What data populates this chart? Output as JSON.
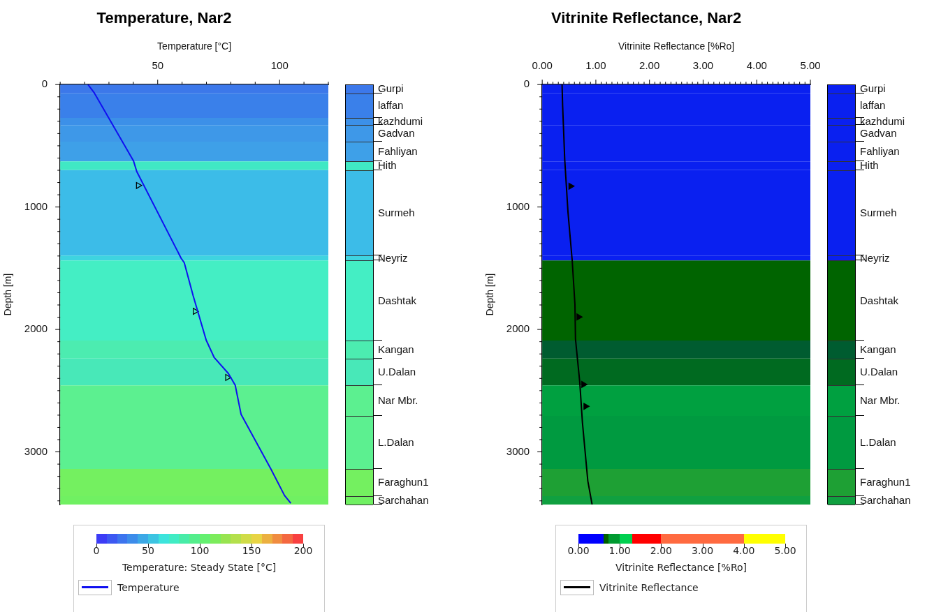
{
  "chart_data": [
    {
      "type": "line",
      "title": "Temperature, Nar2",
      "xlabel": "Temperature [°C]",
      "ylabel": "Depth [m]",
      "clabel": "Temperature: Steady State [°C]",
      "clim": [
        0,
        200
      ],
      "cticks": [
        0,
        50,
        100,
        150,
        200
      ],
      "xlim": [
        10,
        120
      ],
      "xticks": [
        {
          "value": 10,
          "label": null
        },
        {
          "value": 20,
          "label": null
        },
        {
          "value": 30,
          "label": null
        },
        {
          "value": 40,
          "label": null
        },
        50,
        {
          "value": 60,
          "label": null
        },
        {
          "value": 70,
          "label": null
        },
        {
          "value": 80,
          "label": null
        },
        {
          "value": 90,
          "label": null
        },
        100,
        {
          "value": 110,
          "label": null
        },
        {
          "value": 120,
          "label": null
        }
      ],
      "ylim": [
        3430,
        0
      ],
      "yticks": [
        0,
        {
          "value": 100,
          "label": null
        },
        {
          "value": 200,
          "label": null
        },
        {
          "value": 300,
          "label": null
        },
        {
          "value": 400,
          "label": null
        },
        {
          "value": 500,
          "label": null
        },
        {
          "value": 600,
          "label": null
        },
        {
          "value": 700,
          "label": null
        },
        {
          "value": 800,
          "label": null
        },
        {
          "value": 900,
          "label": null
        },
        1000,
        {
          "value": 1100,
          "label": null
        },
        {
          "value": 1200,
          "label": null
        },
        {
          "value": 1300,
          "label": null
        },
        {
          "value": 1400,
          "label": null
        },
        {
          "value": 1500,
          "label": null
        },
        {
          "value": 1600,
          "label": null
        },
        {
          "value": 1700,
          "label": null
        },
        {
          "value": 1800,
          "label": null
        },
        {
          "value": 1900,
          "label": null
        },
        2000,
        {
          "value": 2100,
          "label": null
        },
        {
          "value": 2200,
          "label": null
        },
        {
          "value": 2300,
          "label": null
        },
        {
          "value": 2400,
          "label": null
        },
        {
          "value": 2500,
          "label": null
        },
        {
          "value": 2600,
          "label": null
        },
        {
          "value": 2700,
          "label": null
        },
        {
          "value": 2800,
          "label": null
        },
        {
          "value": 2900,
          "label": null
        },
        3000,
        {
          "value": 3100,
          "label": null
        },
        {
          "value": 3200,
          "label": null
        },
        {
          "value": 3300,
          "label": null
        },
        {
          "value": 3400,
          "label": null
        }
      ],
      "grid": false,
      "legend": "bottom",
      "series": [
        {
          "name": "Temperature",
          "type": "line",
          "color": "#1010f0",
          "x": [
            21.4,
            24,
            40.1,
            41.4,
            59.6,
            60.9,
            64.5,
            69.9,
            73.2,
            79,
            81.8,
            84.2,
            96.5,
            102,
            104.6
          ],
          "values": [
            0,
            68,
            625,
            710,
            1418,
            1455,
            1722,
            2088,
            2230,
            2360,
            2455,
            2693,
            3142,
            3355,
            3420
          ]
        },
        {
          "type": "scatter",
          "marker": "triangle",
          "color": "#000000",
          "x": [
            42,
            65.3,
            78.6
          ],
          "values": [
            824,
            1852,
            2392
          ]
        }
      ],
      "bands": [
        {
          "axis": "y",
          "from": 0,
          "to": 71,
          "color": "#3c78ea"
        },
        {
          "axis": "y",
          "from": 71,
          "to": 272,
          "color": "#3a80ea"
        },
        {
          "axis": "y",
          "from": 272,
          "to": 331,
          "color": "#3c90e8"
        },
        {
          "axis": "y",
          "from": 331,
          "to": 466,
          "color": "#3e98e8"
        },
        {
          "axis": "y",
          "from": 466,
          "to": 627,
          "color": "#3ea0e8"
        },
        {
          "axis": "y",
          "from": 627,
          "to": 698,
          "color": "#40e8c4"
        },
        {
          "axis": "y",
          "from": 698,
          "to": 1397,
          "color": "#3cbce8"
        },
        {
          "axis": "y",
          "from": 1397,
          "to": 1437,
          "color": "#3ed4e0"
        },
        {
          "axis": "y",
          "from": 1437,
          "to": 2090,
          "color": "#44eec4"
        },
        {
          "axis": "y",
          "from": 2090,
          "to": 2237,
          "color": "#4cecb0"
        },
        {
          "axis": "y",
          "from": 2237,
          "to": 2457,
          "color": "#48e8b8"
        },
        {
          "axis": "y",
          "from": 2457,
          "to": 2706,
          "color": "#5cf090"
        },
        {
          "axis": "y",
          "from": 2706,
          "to": 3139,
          "color": "#5cf090"
        },
        {
          "axis": "y",
          "from": 3139,
          "to": 3361,
          "color": "#74f060"
        },
        {
          "axis": "y",
          "from": 3361,
          "to": 3430,
          "color": "#70f062"
        }
      ],
      "annotations": [
        "Gurpi",
        "laffan",
        "kazhdumi",
        "Gadvan",
        "Fahliyan",
        "Hith",
        "Surmeh",
        "Neyriz",
        "Dashtak",
        "Kangan",
        "U.Dalan",
        "Nar Mbr.",
        "L.Dalan",
        "Faraghun1",
        "Sarchahan"
      ]
    },
    {
      "type": "line",
      "title": "Vitrinite Reflectance, Nar2",
      "xlabel": "Vitrinite Reflectance [%Ro]",
      "ylabel": "Depth [m]",
      "clabel": "Vitrinite Reflectance [%Ro]",
      "clim": [
        0,
        5
      ],
      "cticks": [
        {
          "value": 0,
          "label": "0.00"
        },
        {
          "value": 1,
          "label": "1.00"
        },
        {
          "value": 2,
          "label": "2.00"
        },
        {
          "value": 3,
          "label": "3.00"
        },
        {
          "value": 4,
          "label": "4.00"
        },
        {
          "value": 5,
          "label": "5.00"
        }
      ],
      "xlim": [
        0,
        5
      ],
      "xticks": [
        {
          "value": 0,
          "label": "0.00"
        },
        {
          "value": 0.1,
          "label": null
        },
        {
          "value": 0.2,
          "label": null
        },
        {
          "value": 0.3,
          "label": null
        },
        {
          "value": 0.4,
          "label": null
        },
        {
          "value": 0.5,
          "label": null
        },
        {
          "value": 0.6,
          "label": null
        },
        {
          "value": 0.7,
          "label": null
        },
        {
          "value": 0.8,
          "label": null
        },
        {
          "value": 0.9,
          "label": null
        },
        {
          "value": 1,
          "label": "1.00"
        },
        {
          "value": 1.1,
          "label": null
        },
        {
          "value": 1.2,
          "label": null
        },
        {
          "value": 1.3,
          "label": null
        },
        {
          "value": 1.4,
          "label": null
        },
        {
          "value": 1.5,
          "label": null
        },
        {
          "value": 1.6,
          "label": null
        },
        {
          "value": 1.7,
          "label": null
        },
        {
          "value": 1.8,
          "label": null
        },
        {
          "value": 1.9,
          "label": null
        },
        {
          "value": 2,
          "label": "2.00"
        },
        {
          "value": 2.1,
          "label": null
        },
        {
          "value": 2.2,
          "label": null
        },
        {
          "value": 2.3,
          "label": null
        },
        {
          "value": 2.4,
          "label": null
        },
        {
          "value": 2.5,
          "label": null
        },
        {
          "value": 2.6,
          "label": null
        },
        {
          "value": 2.7,
          "label": null
        },
        {
          "value": 2.8,
          "label": null
        },
        {
          "value": 2.9,
          "label": null
        },
        {
          "value": 3,
          "label": "3.00"
        },
        {
          "value": 3.1,
          "label": null
        },
        {
          "value": 3.2,
          "label": null
        },
        {
          "value": 3.3,
          "label": null
        },
        {
          "value": 3.4,
          "label": null
        },
        {
          "value": 3.5,
          "label": null
        },
        {
          "value": 3.6,
          "label": null
        },
        {
          "value": 3.7,
          "label": null
        },
        {
          "value": 3.8,
          "label": null
        },
        {
          "value": 3.9,
          "label": null
        },
        {
          "value": 4,
          "label": "4.00"
        },
        {
          "value": 4.1,
          "label": null
        },
        {
          "value": 4.2,
          "label": null
        },
        {
          "value": 4.3,
          "label": null
        },
        {
          "value": 4.4,
          "label": null
        },
        {
          "value": 4.5,
          "label": null
        },
        {
          "value": 4.6,
          "label": null
        },
        {
          "value": 4.7,
          "label": null
        },
        {
          "value": 4.8,
          "label": null
        },
        {
          "value": 4.9,
          "label": null
        },
        {
          "value": 5,
          "label": "5.00"
        }
      ],
      "ylim": [
        3430,
        0
      ],
      "yticks": [
        0,
        {
          "value": 100,
          "label": null
        },
        {
          "value": 200,
          "label": null
        },
        {
          "value": 300,
          "label": null
        },
        {
          "value": 400,
          "label": null
        },
        {
          "value": 500,
          "label": null
        },
        {
          "value": 600,
          "label": null
        },
        {
          "value": 700,
          "label": null
        },
        {
          "value": 800,
          "label": null
        },
        {
          "value": 900,
          "label": null
        },
        1000,
        {
          "value": 1100,
          "label": null
        },
        {
          "value": 1200,
          "label": null
        },
        {
          "value": 1300,
          "label": null
        },
        {
          "value": 1400,
          "label": null
        },
        {
          "value": 1500,
          "label": null
        },
        {
          "value": 1600,
          "label": null
        },
        {
          "value": 1700,
          "label": null
        },
        {
          "value": 1800,
          "label": null
        },
        {
          "value": 1900,
          "label": null
        },
        2000,
        {
          "value": 2100,
          "label": null
        },
        {
          "value": 2200,
          "label": null
        },
        {
          "value": 2300,
          "label": null
        },
        {
          "value": 2400,
          "label": null
        },
        {
          "value": 2500,
          "label": null
        },
        {
          "value": 2600,
          "label": null
        },
        {
          "value": 2700,
          "label": null
        },
        {
          "value": 2800,
          "label": null
        },
        {
          "value": 2900,
          "label": null
        },
        3000,
        {
          "value": 3100,
          "label": null
        },
        {
          "value": 3200,
          "label": null
        },
        {
          "value": 3300,
          "label": null
        },
        {
          "value": 3400,
          "label": null
        }
      ],
      "grid": false,
      "legend": "bottom",
      "series": [
        {
          "name": "Vitrinite Reflectance",
          "type": "line",
          "color": "#000000",
          "x": [
            0.37,
            0.38,
            0.42,
            0.48,
            0.56,
            0.61,
            0.62,
            0.7,
            0.75,
            0.85,
            0.93
          ],
          "values": [
            0,
            166,
            615,
            1040,
            1443,
            1795,
            2077,
            2432,
            2761,
            3237,
            3430
          ]
        },
        {
          "type": "scatter",
          "marker": "triangle",
          "color": "#000000",
          "x": [
            0.53,
            0.68,
            0.77,
            0.81
          ],
          "values": [
            830,
            1898,
            2449,
            2628
          ]
        }
      ],
      "bands": [
        {
          "axis": "y",
          "from": 0,
          "to": 71,
          "color": "#0a20f0"
        },
        {
          "axis": "y",
          "from": 71,
          "to": 272,
          "color": "#0a20f0"
        },
        {
          "axis": "y",
          "from": 272,
          "to": 331,
          "color": "#0a20f0"
        },
        {
          "axis": "y",
          "from": 331,
          "to": 466,
          "color": "#0a20f0"
        },
        {
          "axis": "y",
          "from": 466,
          "to": 627,
          "color": "#0a20f0"
        },
        {
          "axis": "y",
          "from": 627,
          "to": 698,
          "color": "#0a20f0"
        },
        {
          "axis": "y",
          "from": 698,
          "to": 1397,
          "color": "#0a20f0"
        },
        {
          "axis": "y",
          "from": 1397,
          "to": 1437,
          "color": "#0a20f0"
        },
        {
          "axis": "y",
          "from": 1437,
          "to": 2090,
          "color": "#006400"
        },
        {
          "axis": "y",
          "from": 2090,
          "to": 2237,
          "color": "#005c30"
        },
        {
          "axis": "y",
          "from": 2237,
          "to": 2457,
          "color": "#006a20"
        },
        {
          "axis": "y",
          "from": 2457,
          "to": 2706,
          "color": "#00a040"
        },
        {
          "axis": "y",
          "from": 2706,
          "to": 3139,
          "color": "#009a40"
        },
        {
          "axis": "y",
          "from": 3139,
          "to": 3361,
          "color": "#1ea034"
        },
        {
          "axis": "y",
          "from": 3361,
          "to": 3430,
          "color": "#10a040"
        }
      ],
      "annotations": [
        "Gurpi",
        "laffan",
        "kazhdumi",
        "Gadvan",
        "Fahliyan",
        "Hith",
        "Surmeh",
        "Neyriz",
        "Dashtak",
        "Kangan",
        "U.Dalan",
        "Nar Mbr.",
        "L.Dalan",
        "Faraghun1",
        "Sarchahan"
      ]
    }
  ]
}
